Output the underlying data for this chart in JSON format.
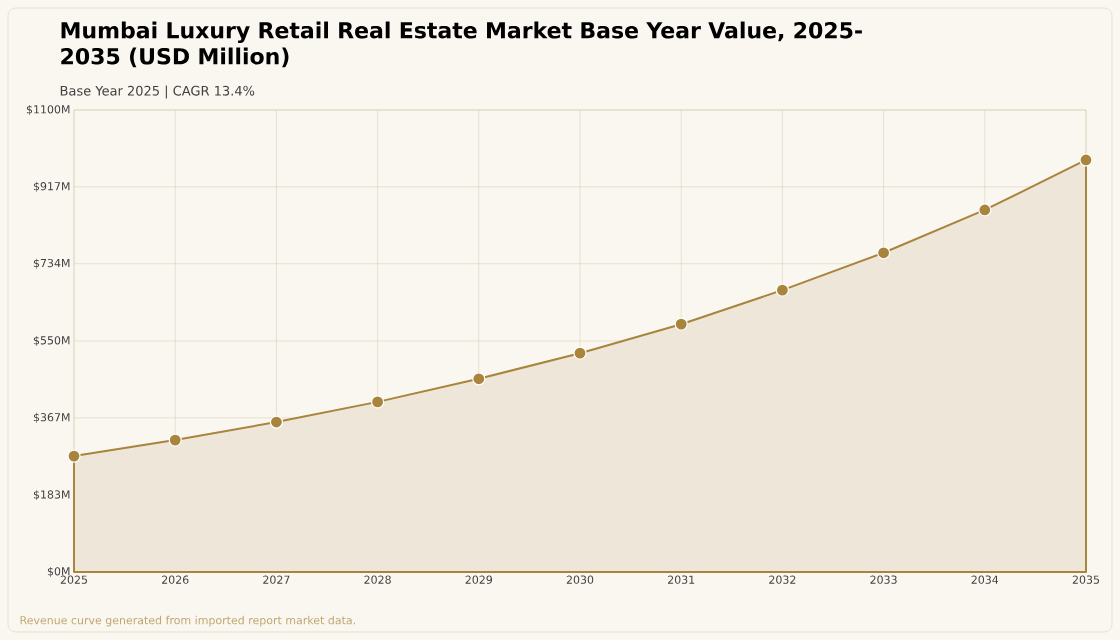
{
  "chart_data": {
    "type": "area",
    "title": "Mumbai Luxury Retail Real Estate Market Base Year Value, 2025-2035 (USD Million)",
    "subtitle": "Base Year 2025 | CAGR 13.4%",
    "categories": [
      "2025",
      "2026",
      "2027",
      "2028",
      "2029",
      "2030",
      "2031",
      "2032",
      "2033",
      "2034",
      "2035"
    ],
    "series": [
      {
        "color": "#a8843c",
        "values": [
          276,
          314,
          357,
          405,
          460,
          521,
          590,
          671,
          760,
          862,
          981
        ]
      }
    ],
    "ylim": [
      0,
      1100
    ],
    "yticks": [
      {
        "value": 0,
        "label": "$0M"
      },
      {
        "value": 183,
        "label": "$183M"
      },
      {
        "value": 367,
        "label": "$367M"
      },
      {
        "value": 550,
        "label": "$550M"
      },
      {
        "value": 734,
        "label": "$734M"
      },
      {
        "value": 917,
        "label": "$917M"
      },
      {
        "value": 1100,
        "label": "$1100M"
      }
    ],
    "grid": true,
    "marker": "circle",
    "line_style": "solid",
    "annotations": [
      "Revenue curve generated from imported report market data."
    ]
  }
}
